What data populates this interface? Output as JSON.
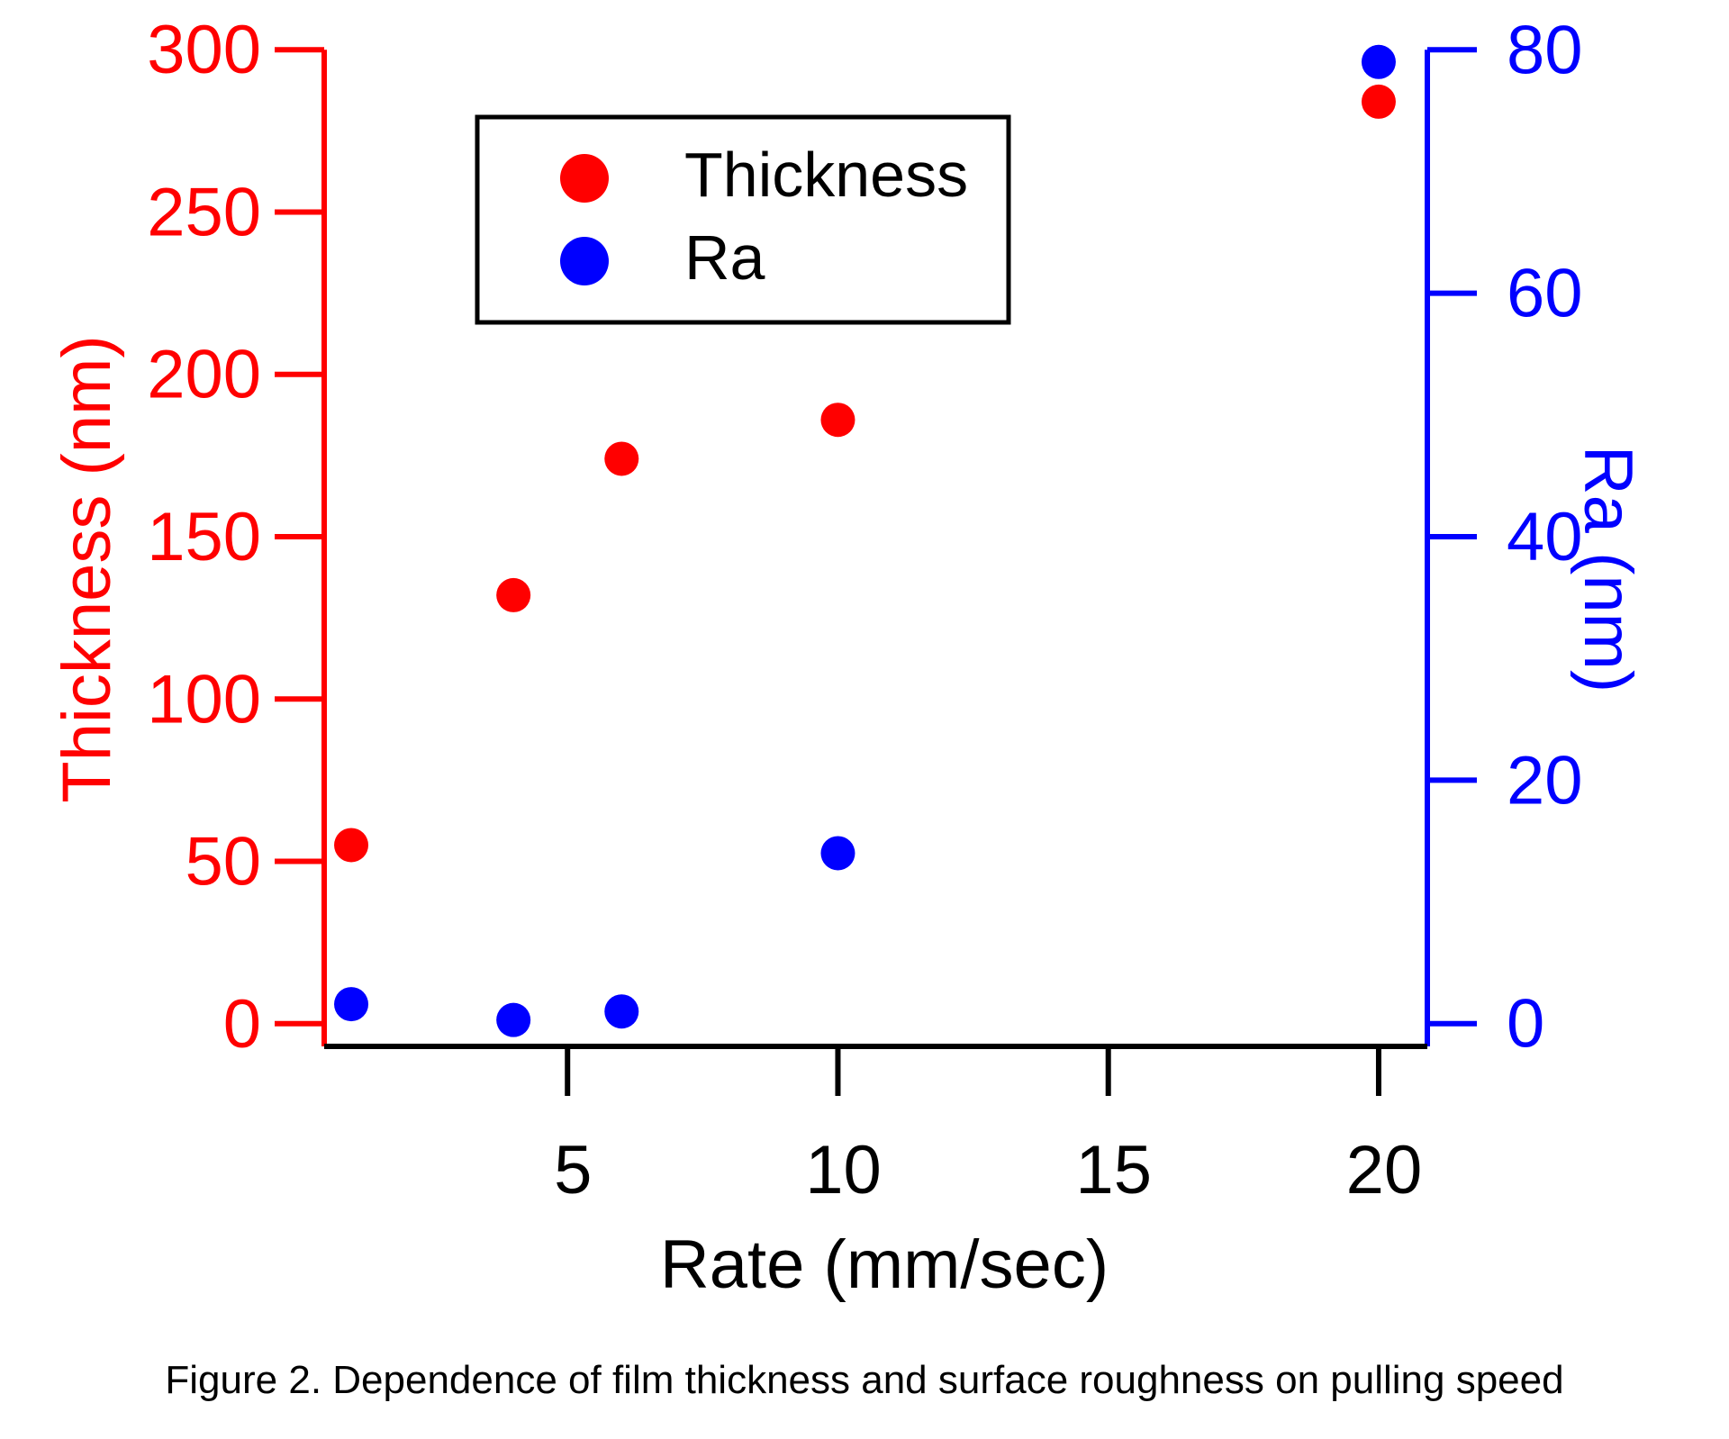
{
  "chart_data": {
    "type": "scatter",
    "caption": "Figure 2. Dependence of film thickness and surface roughness on pulling speed",
    "xlabel": "Rate (mm/sec)",
    "ylabel_left": "Thickness (nm)",
    "ylabel_right": "Ra (nm)",
    "xlim": [
      0.5,
      20.9
    ],
    "ylim_left": [
      -7,
      307
    ],
    "ylim_right": [
      -1.87,
      81.87
    ],
    "x_ticks": [
      5,
      10,
      15,
      20
    ],
    "y_left_ticks": [
      0,
      50,
      100,
      150,
      200,
      250,
      300
    ],
    "y_right_ticks": [
      0,
      20,
      40,
      60,
      80
    ],
    "legend": {
      "placement": "top-left"
    },
    "series": [
      {
        "name": "Thickness",
        "axis": "left",
        "color": "#ff0000",
        "x": [
          1,
          4,
          6,
          10,
          20
        ],
        "y": [
          55,
          132,
          174,
          186,
          284
        ]
      },
      {
        "name": "Ra",
        "axis": "right",
        "color": "#0000ff",
        "x": [
          1,
          4,
          6,
          10,
          20
        ],
        "y": [
          1.6,
          0.3,
          1.0,
          14.0,
          79.0
        ]
      }
    ],
    "colors": {
      "left_axis": "#ff0000",
      "right_axis": "#0000ff",
      "bottom_axis": "#000000"
    }
  }
}
